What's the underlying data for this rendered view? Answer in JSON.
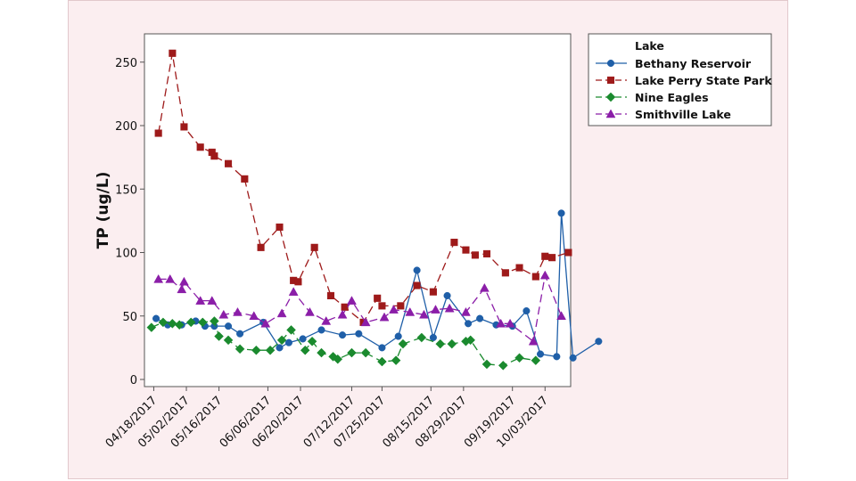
{
  "chart_data": {
    "type": "line",
    "title": "",
    "xlabel": "",
    "ylabel": "TP (ug/L)",
    "ylim": [
      0,
      270
    ],
    "yticks": [
      0,
      50,
      100,
      150,
      200,
      250
    ],
    "xlim": [
      "2017-04-14",
      "2017-10-14"
    ],
    "xticks": [
      {
        "date": "2017-04-18",
        "label": "04/18/2017"
      },
      {
        "date": "2017-05-02",
        "label": "05/02/2017"
      },
      {
        "date": "2017-05-16",
        "label": "05/16/2017"
      },
      {
        "date": "2017-06-06",
        "label": "06/06/2017"
      },
      {
        "date": "2017-06-20",
        "label": "06/20/2017"
      },
      {
        "date": "2017-07-12",
        "label": "07/12/2017"
      },
      {
        "date": "2017-07-25",
        "label": "07/25/2017"
      },
      {
        "date": "2017-08-15",
        "label": "08/15/2017"
      },
      {
        "date": "2017-08-29",
        "label": "08/29/2017"
      },
      {
        "date": "2017-09-19",
        "label": "09/19/2017"
      },
      {
        "date": "2017-10-03",
        "label": "10/03/2017"
      }
    ],
    "grid": false,
    "legend": {
      "title": "Lake",
      "placement": "right"
    },
    "series": [
      {
        "name": "Bethany Reservoir",
        "color": "#1f5fa8",
        "marker": "circle",
        "dash": "solid",
        "points": [
          [
            "2017-04-19",
            48
          ],
          [
            "2017-04-24",
            43
          ],
          [
            "2017-04-30",
            43
          ],
          [
            "2017-05-06",
            46
          ],
          [
            "2017-05-10",
            42
          ],
          [
            "2017-05-14",
            42
          ],
          [
            "2017-05-20",
            42
          ],
          [
            "2017-05-25",
            36
          ],
          [
            "2017-06-04",
            45
          ],
          [
            "2017-06-11",
            25
          ],
          [
            "2017-06-15",
            29
          ],
          [
            "2017-06-21",
            32
          ],
          [
            "2017-06-29",
            39
          ],
          [
            "2017-07-08",
            35
          ],
          [
            "2017-07-15",
            36
          ],
          [
            "2017-07-25",
            25
          ],
          [
            "2017-08-01",
            34
          ],
          [
            "2017-08-09",
            86
          ],
          [
            "2017-08-16",
            33
          ],
          [
            "2017-08-22",
            66
          ],
          [
            "2017-08-31",
            44
          ],
          [
            "2017-09-05",
            48
          ],
          [
            "2017-09-12",
            43
          ],
          [
            "2017-09-19",
            42
          ],
          [
            "2017-09-25",
            54
          ],
          [
            "2017-10-01",
            20
          ],
          [
            "2017-10-08",
            18
          ],
          [
            "2017-10-10",
            131
          ],
          [
            "2017-10-15",
            17
          ],
          [
            "2017-10-26",
            30
          ]
        ]
      },
      {
        "name": "Lake Perry State Park",
        "color": "#9e1a1a",
        "marker": "square",
        "dash": "dashed",
        "points": [
          [
            "2017-04-20",
            194
          ],
          [
            "2017-04-26",
            257
          ],
          [
            "2017-05-01",
            199
          ],
          [
            "2017-05-08",
            183
          ],
          [
            "2017-05-13",
            179
          ],
          [
            "2017-05-14",
            176
          ],
          [
            "2017-05-20",
            170
          ],
          [
            "2017-05-27",
            158
          ],
          [
            "2017-06-03",
            104
          ],
          [
            "2017-06-11",
            120
          ],
          [
            "2017-06-17",
            78
          ],
          [
            "2017-06-19",
            77
          ],
          [
            "2017-06-26",
            104
          ],
          [
            "2017-07-03",
            66
          ],
          [
            "2017-07-09",
            57
          ],
          [
            "2017-07-17",
            45
          ],
          [
            "2017-07-23",
            64
          ],
          [
            "2017-07-25",
            58
          ],
          [
            "2017-08-02",
            58
          ],
          [
            "2017-08-09",
            74
          ],
          [
            "2017-08-16",
            69
          ],
          [
            "2017-08-25",
            108
          ],
          [
            "2017-08-30",
            102
          ],
          [
            "2017-09-03",
            98
          ],
          [
            "2017-09-08",
            99
          ],
          [
            "2017-09-16",
            84
          ],
          [
            "2017-09-22",
            88
          ],
          [
            "2017-09-29",
            81
          ],
          [
            "2017-10-03",
            97
          ],
          [
            "2017-10-06",
            96
          ],
          [
            "2017-10-13",
            100
          ]
        ]
      },
      {
        "name": "Nine Eagles",
        "color": "#1a8a2e",
        "marker": "diamond",
        "dash": "dashed",
        "points": [
          [
            "2017-04-17",
            41
          ],
          [
            "2017-04-22",
            45
          ],
          [
            "2017-04-26",
            44
          ],
          [
            "2017-04-29",
            43
          ],
          [
            "2017-05-04",
            45
          ],
          [
            "2017-05-09",
            45
          ],
          [
            "2017-05-14",
            46
          ],
          [
            "2017-05-16",
            34
          ],
          [
            "2017-05-20",
            31
          ],
          [
            "2017-05-25",
            24
          ],
          [
            "2017-06-01",
            23
          ],
          [
            "2017-06-07",
            23
          ],
          [
            "2017-06-12",
            31
          ],
          [
            "2017-06-16",
            39
          ],
          [
            "2017-06-22",
            23
          ],
          [
            "2017-06-25",
            30
          ],
          [
            "2017-06-29",
            21
          ],
          [
            "2017-07-04",
            18
          ],
          [
            "2017-07-06",
            16
          ],
          [
            "2017-07-12",
            21
          ],
          [
            "2017-07-18",
            21
          ],
          [
            "2017-07-25",
            14
          ],
          [
            "2017-07-31",
            15
          ],
          [
            "2017-08-03",
            28
          ],
          [
            "2017-08-11",
            33
          ],
          [
            "2017-08-19",
            28
          ],
          [
            "2017-08-24",
            28
          ],
          [
            "2017-08-30",
            30
          ],
          [
            "2017-09-01",
            31
          ],
          [
            "2017-09-08",
            12
          ],
          [
            "2017-09-15",
            11
          ],
          [
            "2017-09-22",
            17
          ],
          [
            "2017-09-29",
            15
          ]
        ]
      },
      {
        "name": "Smithville Lake",
        "color": "#8b1ea8",
        "marker": "triangle",
        "dash": "dashed",
        "points": [
          [
            "2017-04-20",
            79
          ],
          [
            "2017-04-25",
            79
          ],
          [
            "2017-04-30",
            71
          ],
          [
            "2017-05-01",
            77
          ],
          [
            "2017-05-08",
            62
          ],
          [
            "2017-05-13",
            62
          ],
          [
            "2017-05-18",
            51
          ],
          [
            "2017-05-24",
            53
          ],
          [
            "2017-05-31",
            50
          ],
          [
            "2017-06-05",
            44
          ],
          [
            "2017-06-12",
            52
          ],
          [
            "2017-06-17",
            69
          ],
          [
            "2017-06-24",
            53
          ],
          [
            "2017-07-01",
            46
          ],
          [
            "2017-07-08",
            51
          ],
          [
            "2017-07-12",
            62
          ],
          [
            "2017-07-18",
            45
          ],
          [
            "2017-07-26",
            49
          ],
          [
            "2017-07-30",
            55
          ],
          [
            "2017-08-06",
            53
          ],
          [
            "2017-08-12",
            51
          ],
          [
            "2017-08-17",
            55
          ],
          [
            "2017-08-23",
            56
          ],
          [
            "2017-08-30",
            53
          ],
          [
            "2017-09-07",
            72
          ],
          [
            "2017-09-14",
            44
          ],
          [
            "2017-09-18",
            44
          ],
          [
            "2017-09-28",
            30
          ],
          [
            "2017-10-03",
            82
          ],
          [
            "2017-10-10",
            50
          ]
        ]
      }
    ]
  }
}
